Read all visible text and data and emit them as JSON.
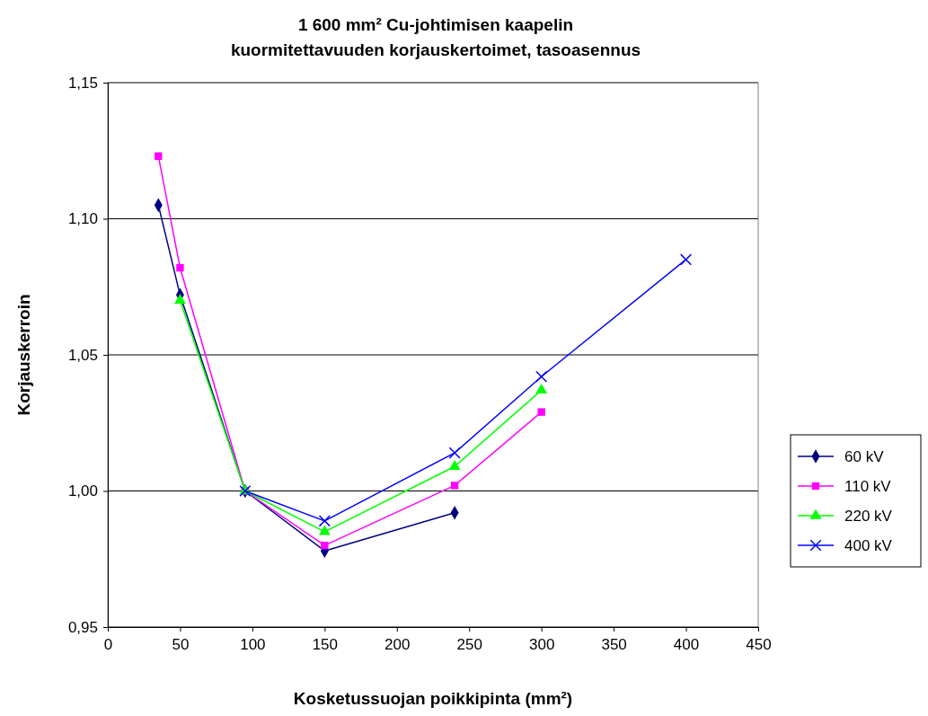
{
  "chart_data": {
    "type": "line",
    "title": "1 600 mm² Cu-johtimisen kaapelin kuormitettavuuden korjauskertoimet, tasoasennus",
    "xlabel": "Kosketussuojan poikkipinta (mm²)",
    "ylabel": "Korjauskerroin",
    "xlim": [
      0,
      450
    ],
    "xticks": [
      0,
      50,
      100,
      150,
      200,
      250,
      300,
      350,
      400,
      450
    ],
    "ylim": [
      0.95,
      1.15
    ],
    "yticks": [
      {
        "value": 0.95,
        "label": "0,95"
      },
      {
        "value": 1.0,
        "label": "1,00"
      },
      {
        "value": 1.05,
        "label": "1,05"
      },
      {
        "value": 1.1,
        "label": "1,10"
      },
      {
        "value": 1.15,
        "label": "1,15"
      }
    ],
    "grid": "y",
    "legend": "right",
    "line_style": "solid",
    "series": [
      {
        "name": "60 kV",
        "color": "#000080",
        "marker": "diamond",
        "x": [
          35,
          50,
          95,
          150,
          240
        ],
        "values": [
          1.105,
          1.072,
          1.0,
          0.978,
          0.992
        ]
      },
      {
        "name": "110 kV",
        "color": "#ff00ff",
        "marker": "square",
        "x": [
          35,
          50,
          95,
          150,
          240,
          300
        ],
        "values": [
          1.123,
          1.082,
          1.0,
          0.98,
          1.002,
          1.029
        ]
      },
      {
        "name": "220 kV",
        "color": "#00ff00",
        "marker": "triangle",
        "x": [
          50,
          95,
          150,
          240,
          300
        ],
        "values": [
          1.07,
          1.0,
          0.985,
          1.009,
          1.037
        ]
      },
      {
        "name": "400 kV",
        "color": "#0000ff",
        "marker": "cross",
        "x": [
          95,
          150,
          240,
          300,
          400
        ],
        "values": [
          1.0,
          0.989,
          1.014,
          1.042,
          1.085
        ]
      }
    ]
  }
}
